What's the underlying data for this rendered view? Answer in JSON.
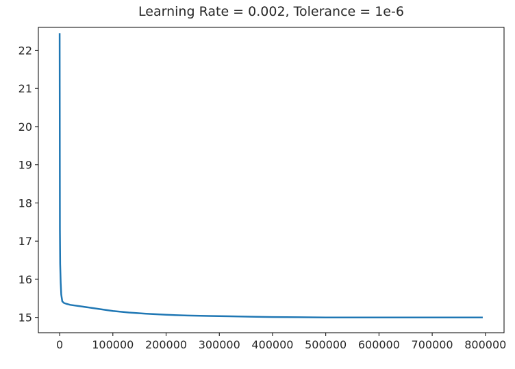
{
  "chart_data": {
    "type": "line",
    "title": "Learning Rate = 0.002, Tolerance = 1e-6",
    "xlabel": "",
    "ylabel": "",
    "xlim": [
      -40000,
      835000
    ],
    "ylim": [
      14.6,
      22.6
    ],
    "xticks": [
      0,
      100000,
      200000,
      300000,
      400000,
      500000,
      600000,
      700000,
      800000
    ],
    "yticks": [
      15,
      16,
      17,
      18,
      19,
      20,
      21,
      22
    ],
    "grid": false,
    "color": "#1f77b4",
    "series": [
      {
        "x": [
          0,
          500,
          1000,
          2000,
          3000,
          5000,
          8000,
          12000,
          20000,
          40000,
          60000,
          80000,
          100000,
          130000,
          160000,
          200000,
          240000,
          280000,
          320000,
          360000,
          400000,
          450000,
          500000,
          600000,
          700000,
          795000
        ],
        "y": [
          22.45,
          17.3,
          16.4,
          15.9,
          15.6,
          15.42,
          15.38,
          15.36,
          15.33,
          15.29,
          15.25,
          15.21,
          15.17,
          15.13,
          15.1,
          15.07,
          15.05,
          15.04,
          15.03,
          15.02,
          15.01,
          15.005,
          15.0,
          15.0,
          15.0,
          15.0
        ]
      }
    ]
  }
}
